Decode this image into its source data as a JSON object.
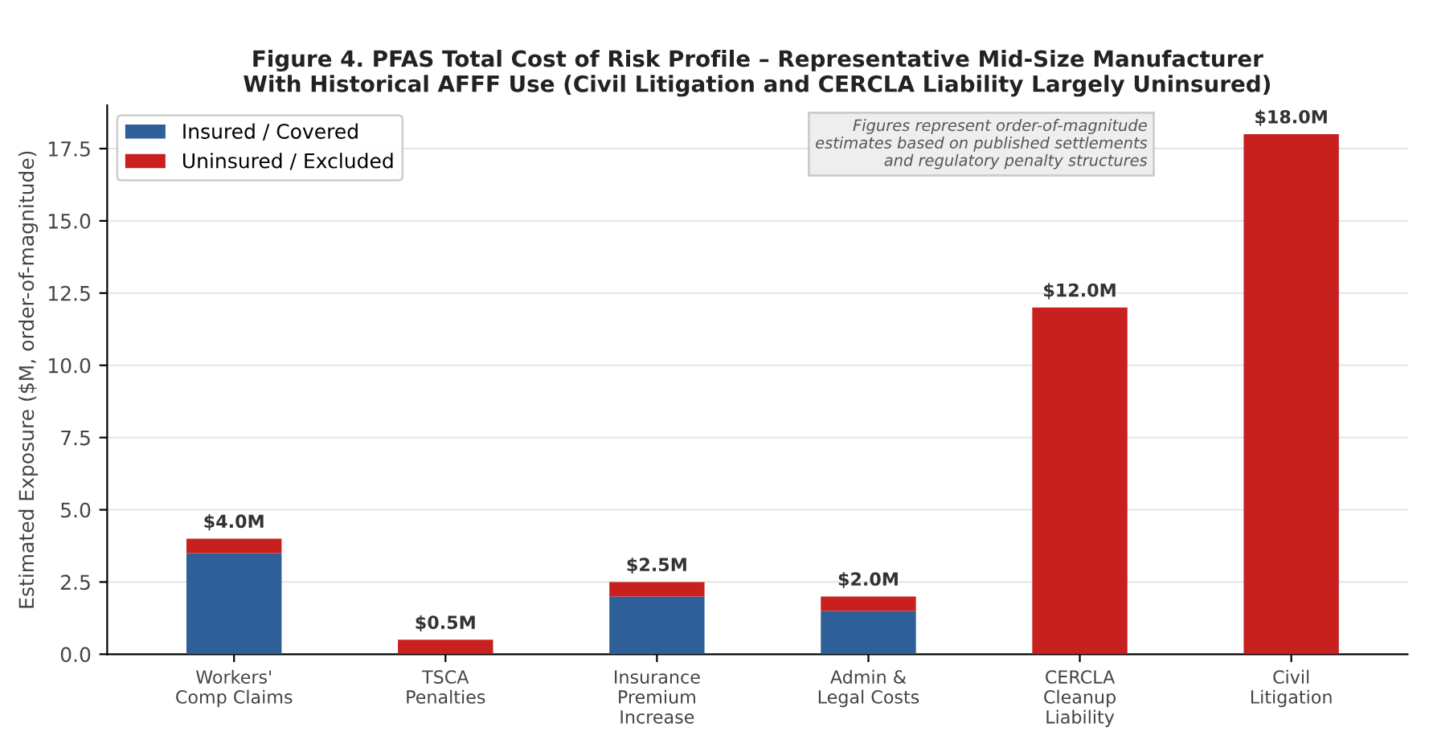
{
  "chart_data": {
    "type": "bar",
    "title": "Figure 4. PFAS Total Cost of Risk Profile – Representative Mid-Size Manufacturer\nWith Historical AFFF Use (Civil Litigation and CERCLA Liability Largely Uninsured)",
    "ylabel": "Estimated Exposure ($M, order-of-magnitude)",
    "categories": [
      "Workers'\nComp Claims",
      "TSCA\nPenalties",
      "Insurance\nPremium\nIncrease",
      "Admin &\nLegal Costs",
      "CERCLA\nCleanup\nLiability",
      "Civil\nLitigation"
    ],
    "series": [
      {
        "name": "Insured / Covered",
        "color": "#2e5f98",
        "values": [
          3.5,
          0,
          2.0,
          1.5,
          0,
          0
        ]
      },
      {
        "name": "Uninsured / Excluded",
        "color": "#c8201f",
        "values": [
          0.5,
          0.5,
          0.5,
          0.5,
          12.0,
          18.0
        ]
      }
    ],
    "stacked": true,
    "totals": [
      "$4.0M",
      "$0.5M",
      "$2.5M",
      "$2.0M",
      "$12.0M",
      "$18.0M"
    ],
    "ylim": [
      0,
      19
    ],
    "yticks": [
      {
        "value": 0,
        "label": "0.0"
      },
      2.5,
      {
        "value": 5,
        "label": "5.0"
      },
      7.5,
      {
        "value": 10,
        "label": "10.0"
      },
      12.5,
      {
        "value": 15,
        "label": "15.0"
      },
      17.5
    ],
    "grid": "y",
    "legend": "top left",
    "annotations": [
      "Figures represent order-of-magnitude\nestimates based on published settlements\nand regulatory penalty structures"
    ]
  }
}
